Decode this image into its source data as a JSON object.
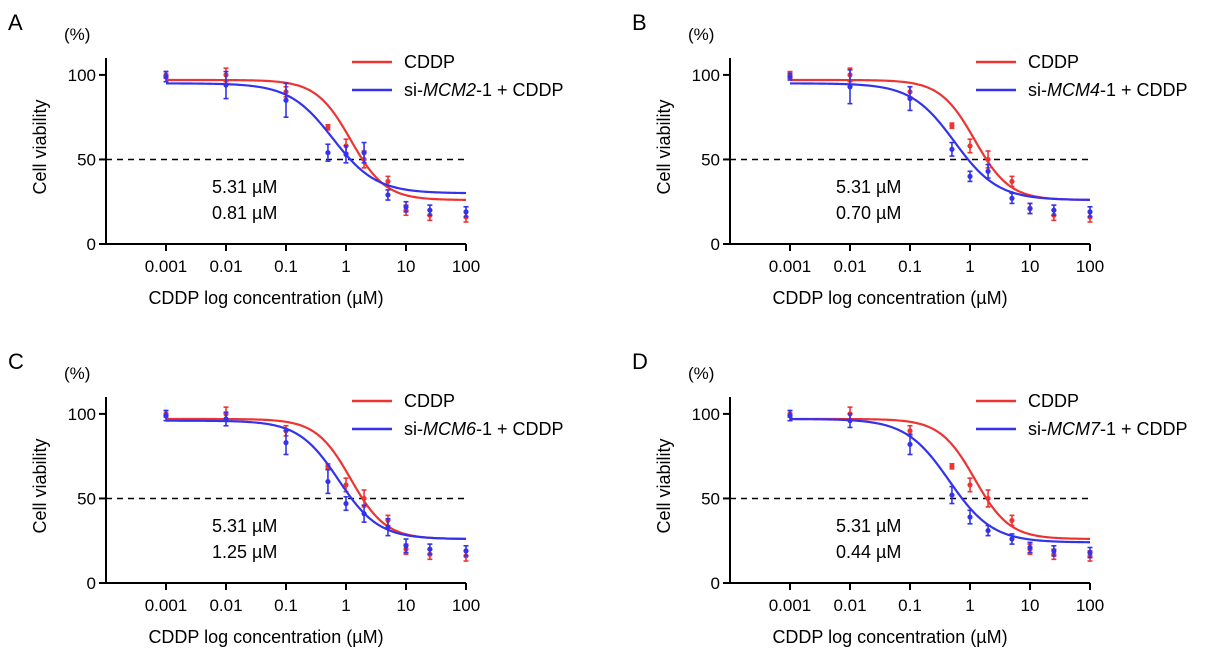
{
  "figure": {
    "curve_colors": {
      "cddp": "#ee3333",
      "si": "#3333ee"
    },
    "axis_color": "#000000",
    "reference_line": {
      "y": 50,
      "style": "dashed"
    }
  },
  "chart_data": [
    {
      "type": "scatter",
      "panel_label": "A",
      "title": "",
      "xlabel": "CDDP log concentration (µM)",
      "ylabel": "Cell viability",
      "y_unit": "(%)",
      "xscale": "log",
      "xlim": [
        0.0001,
        100
      ],
      "ylim": [
        0,
        110
      ],
      "x_ticks": [
        0.001,
        0.01,
        0.1,
        1,
        10,
        100
      ],
      "x_tick_labels": [
        "0.001",
        "0.01",
        "0.1",
        "1",
        "10",
        "100"
      ],
      "y_ticks": [
        0,
        50,
        100
      ],
      "y_tick_labels": [
        "0",
        "50",
        "100"
      ],
      "legend_position": "top-right",
      "x": [
        0.001,
        0.01,
        0.1,
        0.5,
        1,
        2,
        5,
        10,
        25,
        100
      ],
      "series": [
        {
          "name": "CDDP",
          "legend_prefix": "CDDP",
          "legend_gene": "",
          "legend_suffix": "",
          "color": "#ee3333",
          "ic50_label": "5.31 µM",
          "fit": {
            "top": 97,
            "bottom": 26,
            "ec50": 1.2,
            "hill": 1.5
          },
          "values": [
            100,
            100,
            90,
            69,
            58,
            50,
            37,
            20,
            17,
            16
          ],
          "errors": [
            2,
            4,
            3,
            1.5,
            4,
            5,
            3,
            3,
            3,
            3
          ]
        },
        {
          "name": "si-MCM2-1 + CDDP",
          "legend_prefix": "si-",
          "legend_gene": "MCM2",
          "legend_suffix": "-1 + CDDP",
          "color": "#3333ee",
          "ic50_label": "0.81 µM",
          "fit": {
            "top": 95,
            "bottom": 30,
            "ec50": 0.6,
            "hill": 1.2
          },
          "values": [
            99,
            94,
            85,
            54,
            53,
            54,
            29,
            22,
            20,
            19
          ],
          "errors": [
            3,
            8,
            10,
            5,
            5,
            6,
            3,
            3,
            3,
            3
          ]
        }
      ]
    },
    {
      "type": "scatter",
      "panel_label": "B",
      "title": "",
      "xlabel": "CDDP log concentration (µM)",
      "ylabel": "Cell viability",
      "y_unit": "(%)",
      "xscale": "log",
      "xlim": [
        0.0001,
        100
      ],
      "ylim": [
        0,
        110
      ],
      "x_ticks": [
        0.001,
        0.01,
        0.1,
        1,
        10,
        100
      ],
      "x_tick_labels": [
        "0.001",
        "0.01",
        "0.1",
        "1",
        "10",
        "100"
      ],
      "y_ticks": [
        0,
        50,
        100
      ],
      "y_tick_labels": [
        "0",
        "50",
        "100"
      ],
      "legend_position": "top-right",
      "x": [
        0.001,
        0.01,
        0.1,
        0.5,
        1,
        2,
        5,
        10,
        25,
        100
      ],
      "series": [
        {
          "name": "CDDP",
          "legend_prefix": "CDDP",
          "legend_gene": "",
          "legend_suffix": "",
          "color": "#ee3333",
          "ic50_label": "5.31 µM",
          "fit": {
            "top": 97,
            "bottom": 26,
            "ec50": 1.2,
            "hill": 1.5
          },
          "values": [
            100,
            100,
            90,
            70,
            58,
            50,
            37,
            21,
            17,
            16
          ],
          "errors": [
            2,
            4,
            3,
            1.5,
            4,
            5,
            3,
            3,
            3,
            3
          ]
        },
        {
          "name": "si-MCM4-1 + CDDP",
          "legend_prefix": "si-",
          "legend_gene": "MCM4",
          "legend_suffix": "-1 + CDDP",
          "color": "#3333ee",
          "ic50_label": "0.70 µM",
          "fit": {
            "top": 95,
            "bottom": 26,
            "ec50": 0.55,
            "hill": 1.2
          },
          "values": [
            99,
            93,
            86,
            56,
            40,
            43,
            27,
            21,
            20,
            19
          ],
          "errors": [
            2,
            10,
            7,
            4,
            3,
            4,
            3,
            3,
            3,
            3
          ]
        }
      ]
    },
    {
      "type": "scatter",
      "panel_label": "C",
      "title": "",
      "xlabel": "CDDP log concentration (µM)",
      "ylabel": "Cell viability",
      "y_unit": "(%)",
      "xscale": "log",
      "xlim": [
        0.0001,
        100
      ],
      "ylim": [
        0,
        110
      ],
      "x_ticks": [
        0.001,
        0.01,
        0.1,
        1,
        10,
        100
      ],
      "x_tick_labels": [
        "0.001",
        "0.01",
        "0.1",
        "1",
        "10",
        "100"
      ],
      "y_ticks": [
        0,
        50,
        100
      ],
      "y_tick_labels": [
        "0",
        "50",
        "100"
      ],
      "legend_position": "top-right",
      "x": [
        0.001,
        0.01,
        0.1,
        0.5,
        1,
        2,
        5,
        10,
        25,
        100
      ],
      "series": [
        {
          "name": "CDDP",
          "legend_prefix": "CDDP",
          "legend_gene": "",
          "legend_suffix": "",
          "color": "#ee3333",
          "ic50_label": "5.31 µM",
          "fit": {
            "top": 97,
            "bottom": 26,
            "ec50": 1.2,
            "hill": 1.5
          },
          "values": [
            100,
            100,
            90,
            69,
            58,
            50,
            37,
            20,
            17,
            16
          ],
          "errors": [
            2,
            4,
            3,
            1.5,
            4,
            5,
            3,
            3,
            3,
            3
          ]
        },
        {
          "name": "si-MCM6-1 + CDDP",
          "legend_prefix": "si-",
          "legend_gene": "MCM6",
          "legend_suffix": "-1 + CDDP",
          "color": "#3333ee",
          "ic50_label": "1.25 µM",
          "fit": {
            "top": 96,
            "bottom": 26,
            "ec50": 0.75,
            "hill": 1.3
          },
          "values": [
            99,
            97,
            83,
            60,
            47,
            41,
            33,
            22,
            20,
            19
          ],
          "errors": [
            3,
            4,
            7,
            7,
            4,
            5,
            5,
            4,
            3,
            3
          ]
        }
      ]
    },
    {
      "type": "scatter",
      "panel_label": "D",
      "title": "",
      "xlabel": "CDDP log concentration (µM)",
      "ylabel": "Cell viability",
      "y_unit": "(%)",
      "xscale": "log",
      "xlim": [
        0.0001,
        100
      ],
      "ylim": [
        0,
        110
      ],
      "x_ticks": [
        0.001,
        0.01,
        0.1,
        1,
        10,
        100
      ],
      "x_tick_labels": [
        "0.001",
        "0.01",
        "0.1",
        "1",
        "10",
        "100"
      ],
      "y_ticks": [
        0,
        50,
        100
      ],
      "y_tick_labels": [
        "0",
        "50",
        "100"
      ],
      "legend_position": "top-right",
      "x": [
        0.001,
        0.01,
        0.1,
        0.5,
        1,
        2,
        5,
        10,
        25,
        100
      ],
      "series": [
        {
          "name": "CDDP",
          "legend_prefix": "CDDP",
          "legend_gene": "",
          "legend_suffix": "",
          "color": "#ee3333",
          "ic50_label": "5.31 µM",
          "fit": {
            "top": 97,
            "bottom": 26,
            "ec50": 1.2,
            "hill": 1.5
          },
          "values": [
            100,
            100,
            90,
            69,
            58,
            50,
            37,
            20,
            17,
            16
          ],
          "errors": [
            2,
            4,
            3,
            1.5,
            4,
            5,
            3,
            3,
            3,
            3
          ]
        },
        {
          "name": "si-MCM7-1 + CDDP",
          "legend_prefix": "si-",
          "legend_gene": "MCM7",
          "legend_suffix": "-1 + CDDP",
          "color": "#3333ee",
          "ic50_label": "0.44 µM",
          "fit": {
            "top": 97,
            "bottom": 24,
            "ec50": 0.45,
            "hill": 1.2
          },
          "values": [
            99,
            96,
            82,
            52,
            39,
            31,
            26,
            21,
            19,
            18
          ],
          "errors": [
            3,
            4,
            6,
            5,
            4,
            3,
            3,
            3,
            3,
            3
          ]
        }
      ]
    }
  ]
}
